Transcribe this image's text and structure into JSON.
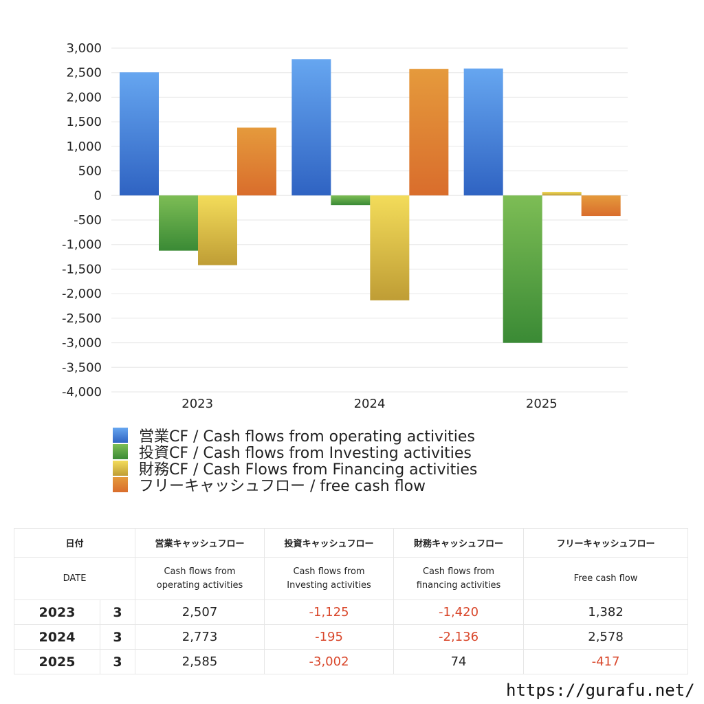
{
  "chart_data": {
    "type": "bar",
    "categories": [
      "2023",
      "2024",
      "2025"
    ],
    "series": [
      {
        "name": "営業CF / Cash flows from operating activities",
        "values": [
          2507,
          2773,
          2585
        ],
        "color_top": "#66a6f0",
        "color_bottom": "#2f63c2"
      },
      {
        "name": "投資CF / Cash flows from Investing activities",
        "values": [
          -1125,
          -195,
          -3002
        ],
        "color_top": "#7dbd55",
        "color_bottom": "#3a8a35"
      },
      {
        "name": "財務CF / Cash Flows from Financing activities",
        "values": [
          -1420,
          -2136,
          74
        ],
        "color_top": "#f3dc5a",
        "color_bottom": "#bf9d35"
      },
      {
        "name": "フリーキャッシュフロー / free cash flow",
        "values": [
          1382,
          2578,
          -417
        ],
        "color_top": "#e59a3c",
        "color_bottom": "#d96d2c"
      }
    ],
    "ylim": [
      -4000,
      3000
    ],
    "yticks": [
      3000,
      2500,
      2000,
      1500,
      1000,
      500,
      0,
      -500,
      -1000,
      -1500,
      -2000,
      -2500,
      -3000,
      -3500,
      -4000
    ],
    "ytick_labels": [
      "3,000",
      "2,500",
      "2,000",
      "1,500",
      "1,000",
      "500",
      "0",
      "-500",
      "-1,000",
      "-1,500",
      "-2,000",
      "-2,500",
      "-3,000",
      "-3,500",
      "-4,000"
    ],
    "grid": true,
    "legend_position": "bottom"
  },
  "table": {
    "headers_jp": [
      "日付",
      "営業キャッシュフロー",
      "投資キャッシュフロー",
      "財務キャッシュフロー",
      "フリーキャッシュフロー"
    ],
    "headers_en": [
      "DATE",
      "Cash flows from operating activities",
      "Cash flows from Investing activities",
      "Cash flows from financing activities",
      "Free cash flow"
    ],
    "rows": [
      {
        "year": "2023",
        "month": "3",
        "values": [
          "2,507",
          "-1,125",
          "-1,420",
          "1,382"
        ]
      },
      {
        "year": "2024",
        "month": "3",
        "values": [
          "2,773",
          "-195",
          "-2,136",
          "2,578"
        ]
      },
      {
        "year": "2025",
        "month": "3",
        "values": [
          "2,585",
          "-3,002",
          "74",
          "-417"
        ]
      }
    ],
    "negative_color": "#d9472b"
  },
  "footer": {
    "url": "https://gurafu.net/"
  }
}
